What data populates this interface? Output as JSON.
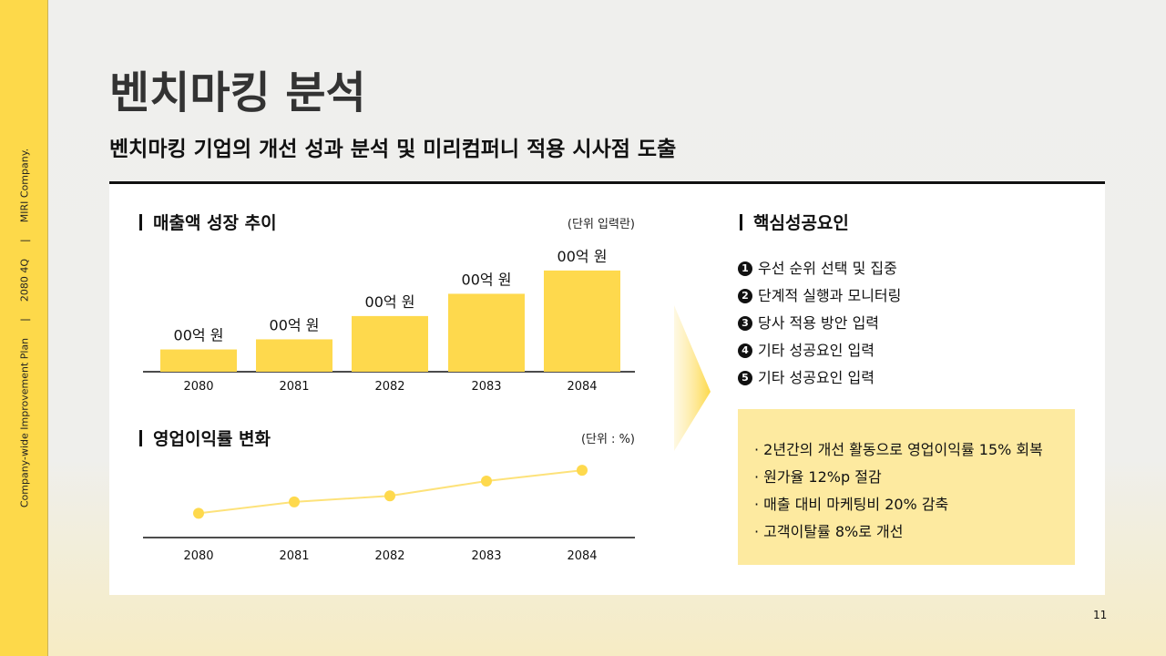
{
  "sidebar": {
    "company": "MIRI Company.",
    "period": "2080 4Q",
    "plan": "Company-wide Improvement Plan",
    "sep": "|"
  },
  "title": "벤치마킹 분석",
  "subtitle": "벤치마킹 기업의 개선 성과 분석 및 미리컴퍼니 적용 시사점 도출",
  "sales": {
    "heading": "매출액 성장 추이",
    "unit": "(단위 입력란)"
  },
  "margin": {
    "heading": "영업이익률 변화",
    "unit": "(단위 : %)"
  },
  "factors": {
    "heading": "핵심성공요인",
    "items": [
      {
        "num": "1",
        "text": "우선 순위 선택 및 집중"
      },
      {
        "num": "2",
        "text": "단계적 실행과 모니터링"
      },
      {
        "num": "3",
        "text": "당사 적용 방안 입력"
      },
      {
        "num": "4",
        "text": "기타 성공요인 입력"
      },
      {
        "num": "5",
        "text": "기타 성공요인 입력"
      }
    ]
  },
  "results": [
    "· 2년간의 개선 활동으로 영업이익률 15% 회복",
    "· 원가율 12%p 절감",
    "· 매출 대비 마케팅비 20% 감축",
    "· 고객이탈률 8%로 개선"
  ],
  "page_number": "11",
  "colors": {
    "accent": "#fdd94a",
    "bar": "#fed94d",
    "box": "#fdeaa0"
  },
  "chart_data": [
    {
      "type": "bar",
      "title": "매출액 성장 추이",
      "categories": [
        "2080",
        "2081",
        "2082",
        "2083",
        "2084"
      ],
      "values": [
        22,
        32,
        55,
        77,
        100
      ],
      "data_labels": [
        "00억 원",
        "00억 원",
        "00억 원",
        "00억 원",
        "00억 원"
      ],
      "ylim": [
        0,
        126
      ],
      "grid": false
    },
    {
      "type": "line",
      "title": "영업이익률 변화",
      "categories": [
        "2080",
        "2081",
        "2082",
        "2083",
        "2084"
      ],
      "values": [
        36,
        53,
        62,
        84,
        100
      ],
      "ylim": [
        0,
        130
      ],
      "grid": false
    }
  ]
}
